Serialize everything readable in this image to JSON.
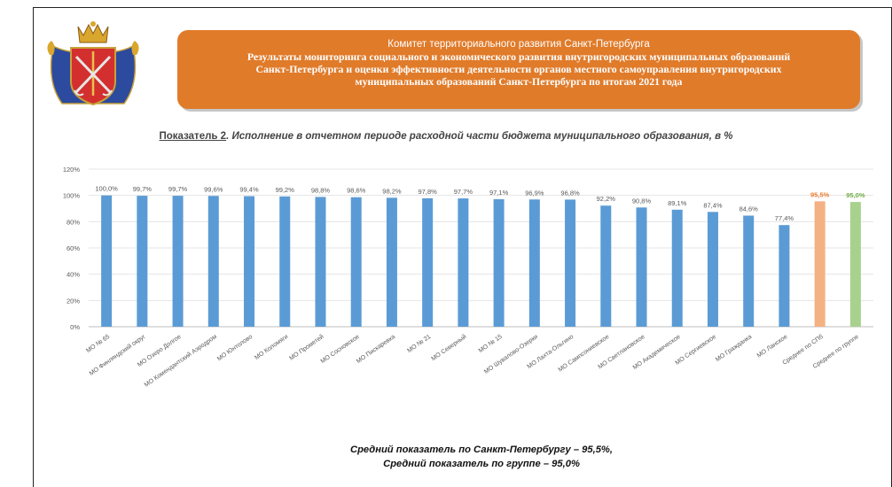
{
  "header": {
    "org": "Комитет территориального развития Санкт-Петербурга",
    "title_lines": [
      "Результаты мониторинга социального и экономического развития внутригородских муниципальных образований",
      "Санкт-Петербурга и оценки эффективности деятельности органов местного самоуправления внутригородских",
      "муниципальных образований Санкт-Петербурга по итогам 2021 года"
    ]
  },
  "indicator": {
    "label": "Показатель 2",
    "text": ". Исполнение в отчетном периоде расходной части бюджета муниципального образования, в %"
  },
  "colors": {
    "bar": "#5b9bd5",
    "spb_avg": "#f4b183",
    "group_avg": "#a9d18e",
    "spb_label": "#ed7d31",
    "group_label": "#70ad47",
    "banner": "#e07b2a"
  },
  "chart_data": {
    "type": "bar",
    "categories": [
      "МО № 65",
      "МО Финляндский округ",
      "МО Озеро Долгое",
      "МО Комендантский Аэродром",
      "МО Юнтолово",
      "МО Коломяги",
      "МО Прометей",
      "МО Сосновское",
      "МО Пискаревка",
      "МО № 21",
      "МО Северный",
      "МО № 15",
      "МО Шувалово-Озерки",
      "МО Лахта-Ольгино",
      "МО Сампсониевское",
      "МО Светлановское",
      "МО Академическое",
      "МО Сергиевское",
      "МО Гражданка",
      "МО Ланское",
      "Среднее по СПб",
      "Среднее по группе"
    ],
    "values": [
      100.0,
      99.7,
      99.7,
      99.6,
      99.4,
      99.2,
      98.8,
      98.6,
      98.2,
      97.8,
      97.7,
      97.1,
      96.9,
      96.8,
      92.2,
      90.8,
      89.1,
      87.4,
      84.6,
      77.4,
      95.5,
      95.0
    ],
    "value_labels": [
      "100,0%",
      "99,7%",
      "99,7%",
      "99,6%",
      "99,4%",
      "99,2%",
      "98,8%",
      "98,6%",
      "98,2%",
      "97,8%",
      "97,7%",
      "97,1%",
      "96,9%",
      "96,8%",
      "92,2%",
      "90,8%",
      "89,1%",
      "87,4%",
      "84,6%",
      "77,4%",
      "95,5%",
      "95,0%"
    ],
    "yticks": [
      "0%",
      "20%",
      "40%",
      "60%",
      "80%",
      "100%",
      "120%"
    ],
    "ylim": [
      0,
      120
    ],
    "grid": true,
    "legend": "none"
  },
  "summary": {
    "line1": "Средний показатель по Санкт-Петербургу – 95,5%,",
    "line2": "Средний показатель по группе – 95,0%"
  }
}
